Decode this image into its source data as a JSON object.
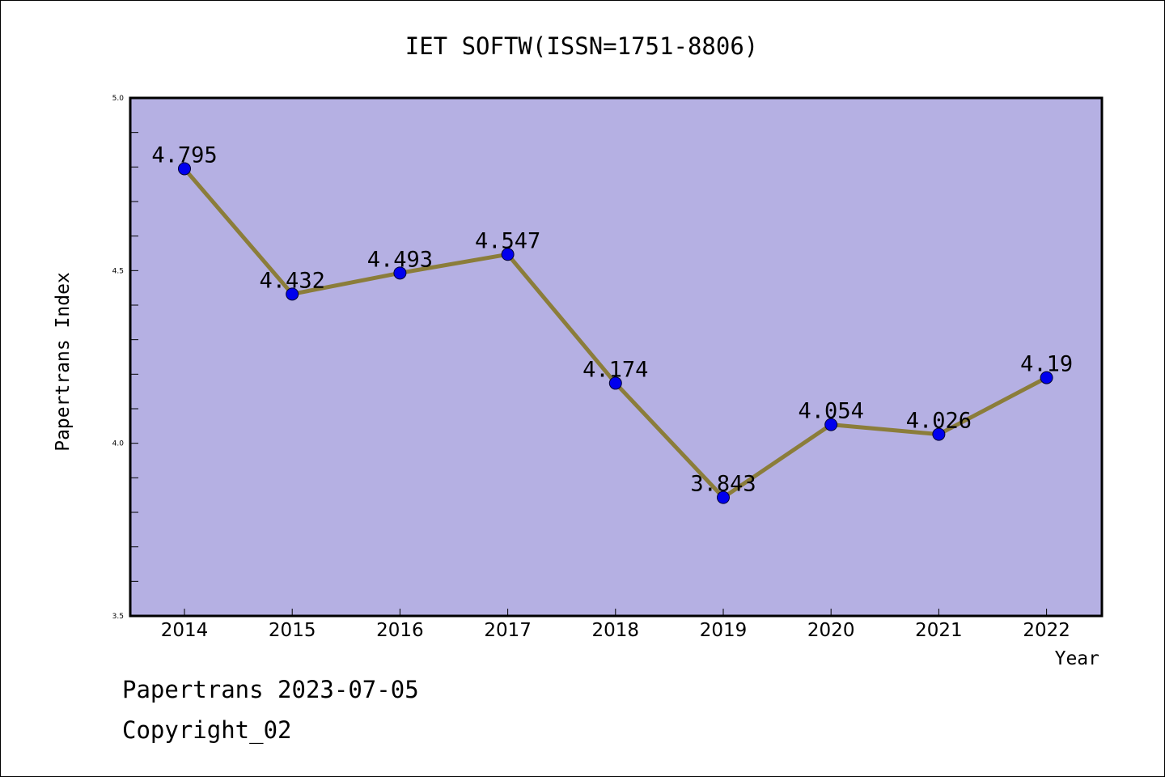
{
  "chart_data": {
    "type": "line",
    "title": "IET SOFTW(ISSN=1751-8806)",
    "xlabel": "Year",
    "ylabel": "Papertrans Index",
    "x": [
      "2014",
      "2015",
      "2016",
      "2017",
      "2018",
      "2019",
      "2020",
      "2021",
      "2022"
    ],
    "series": [
      {
        "values": [
          4.795,
          4.432,
          4.493,
          4.547,
          4.174,
          3.843,
          4.054,
          4.026,
          4.19
        ],
        "labels": [
          "4.795",
          "4.432",
          "4.493",
          "4.547",
          "4.174",
          "3.843",
          "4.054",
          "4.026",
          "4.19"
        ]
      }
    ],
    "ylim": [
      3.5,
      5.0
    ],
    "yticks": [
      "3.5",
      "4.0",
      "4.5",
      "5.0"
    ],
    "grid": false,
    "colors": {
      "plot_background": "#b5b0e3",
      "line": "#8b7d3a",
      "marker": "#0000ee"
    }
  },
  "footer": {
    "date_line": "Papertrans 2023-07-05",
    "copyright": "Copyright_02"
  }
}
